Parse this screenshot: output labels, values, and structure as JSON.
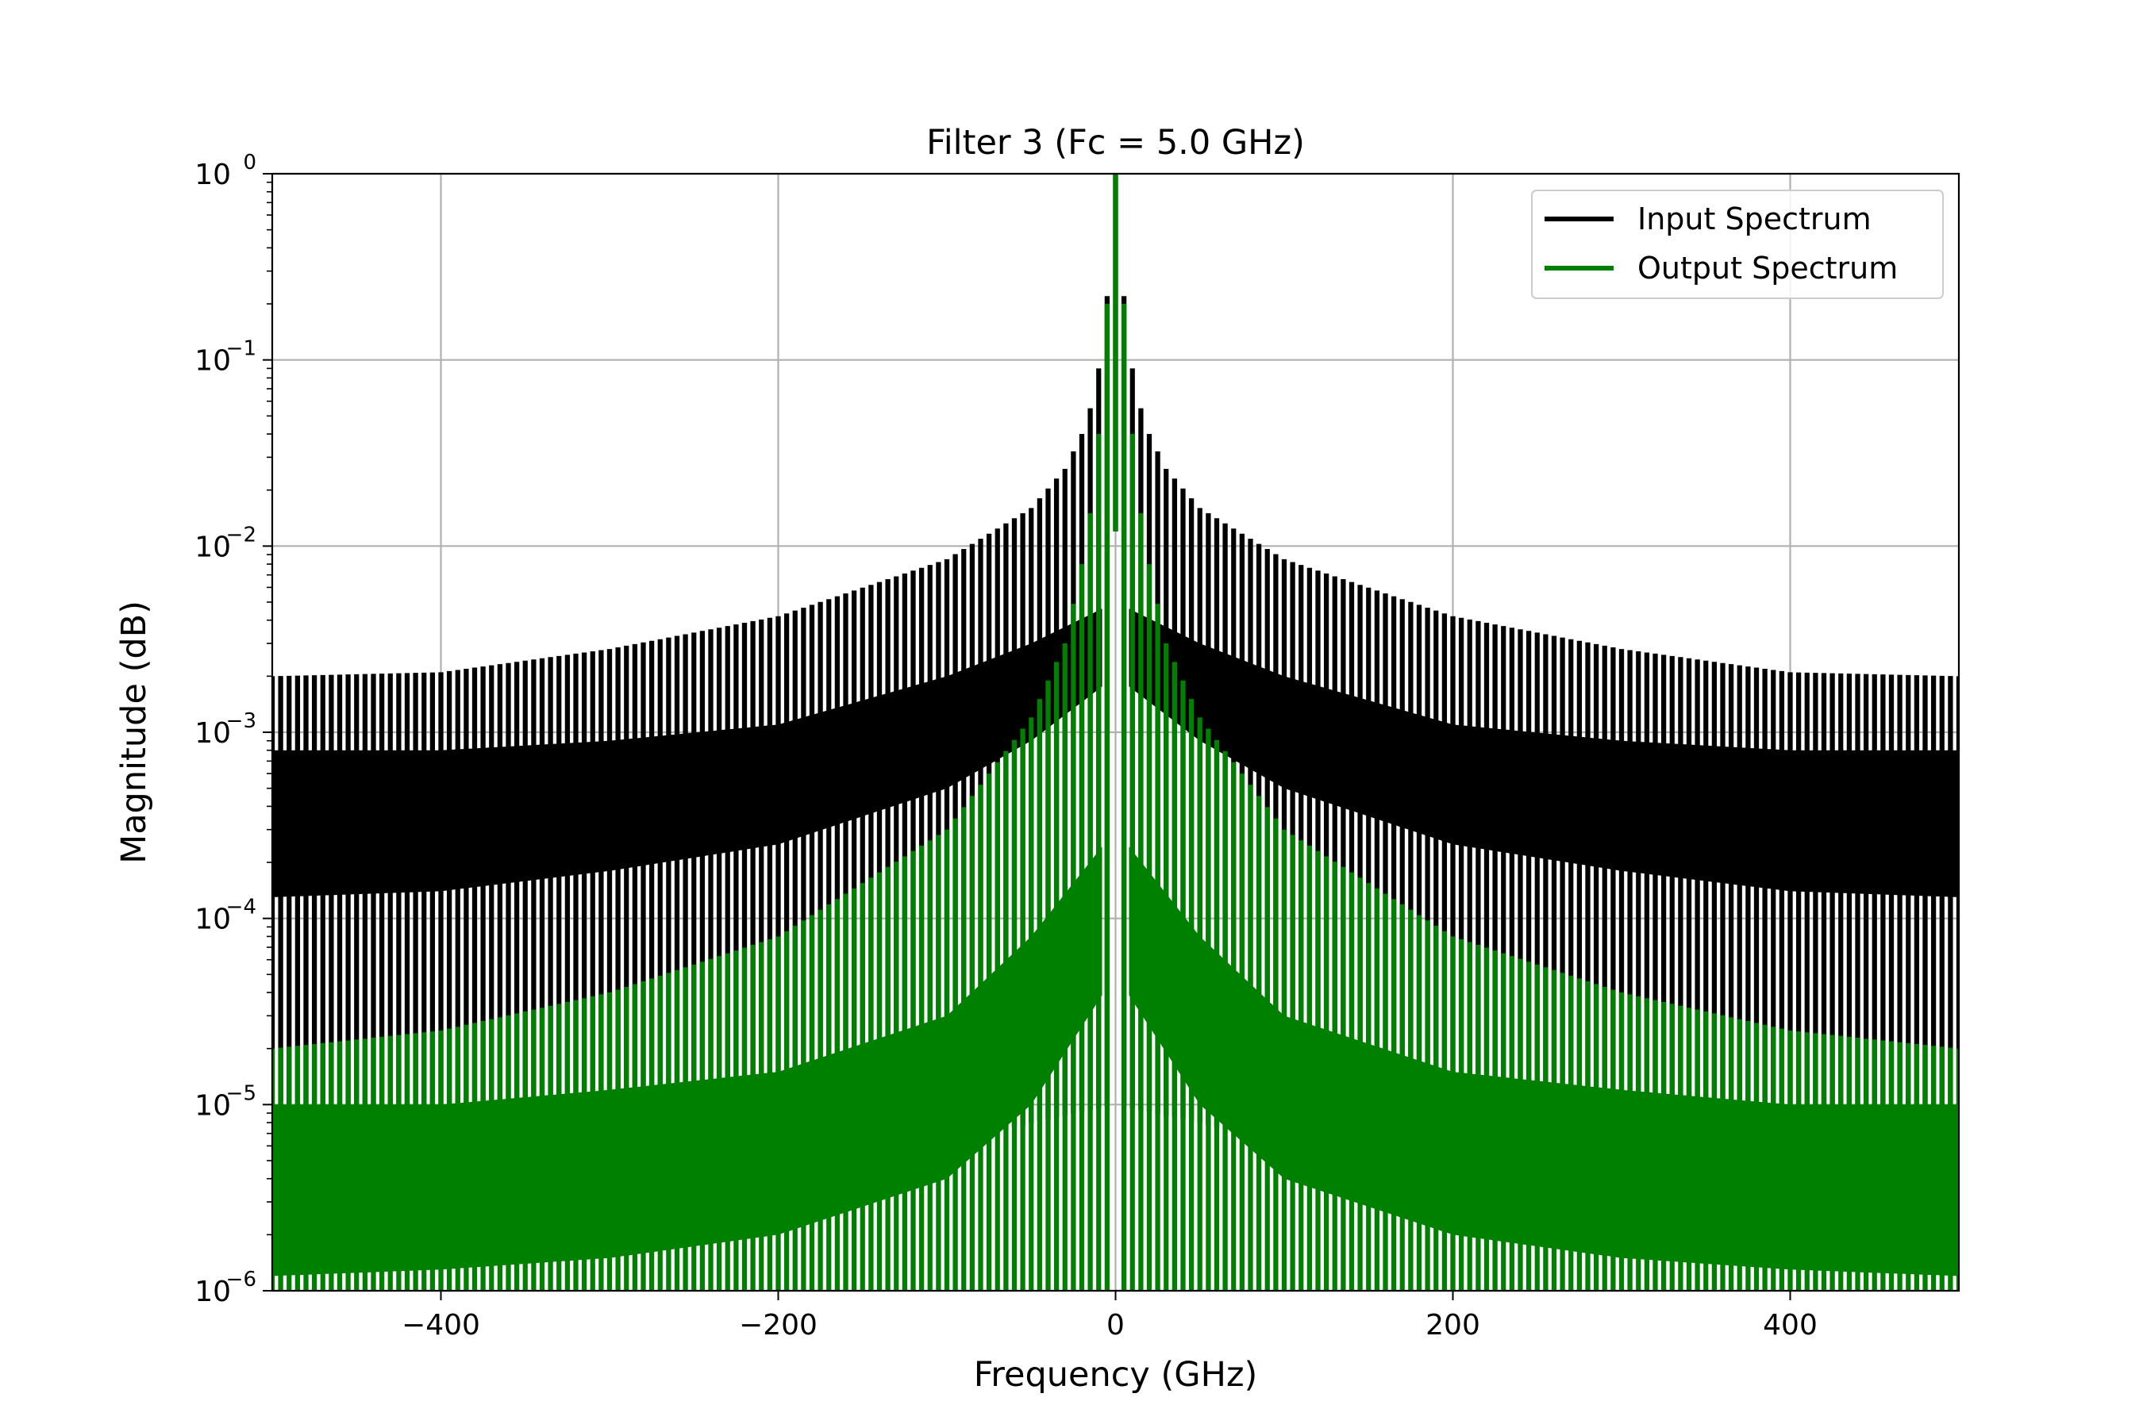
{
  "chart_data": {
    "type": "line",
    "title": "Filter 3 (Fc = 5.0 GHz)",
    "xlabel": "Frequency (GHz)",
    "ylabel": "Magnitude (dB)",
    "xlim": [
      -500,
      500
    ],
    "ylim": [
      1e-06,
      1
    ],
    "yscale": "log",
    "grid": true,
    "legend_position": "top-right",
    "x_ticks": [
      {
        "value": -400,
        "label": "−400"
      },
      {
        "value": -200,
        "label": "−200"
      },
      {
        "value": 0,
        "label": "0"
      },
      {
        "value": 200,
        "label": "200"
      },
      {
        "value": 400,
        "label": "400"
      }
    ],
    "y_ticks": [
      {
        "value": 1,
        "base": "10",
        "exp": "0"
      },
      {
        "value": 0.1,
        "base": "10",
        "exp": "−1"
      },
      {
        "value": 0.01,
        "base": "10",
        "exp": "−2"
      },
      {
        "value": 0.001,
        "base": "10",
        "exp": "−3"
      },
      {
        "value": 0.0001,
        "base": "10",
        "exp": "−4"
      },
      {
        "value": 1e-05,
        "base": "10",
        "exp": "−5"
      },
      {
        "value": 1e-06,
        "base": "10",
        "exp": "−6"
      }
    ],
    "harmonic_spacing_ghz": 5,
    "series": [
      {
        "name": "Input Spectrum",
        "color": "#000000",
        "envelope_x": [
          0,
          5,
          10,
          15,
          20,
          30,
          50,
          100,
          200,
          300,
          400,
          500
        ],
        "envelope_peak": [
          1.0,
          0.22,
          0.09,
          0.055,
          0.04,
          0.026,
          0.016,
          0.0085,
          0.0042,
          0.0028,
          0.0021,
          0.002
        ],
        "floor_x": [
          0,
          50,
          100,
          200,
          300,
          400,
          500
        ],
        "floor_min": [
          1e-05,
          8e-06,
          6e-06,
          5e-06,
          5e-06,
          5e-06,
          5e-06
        ],
        "band_low_x": [
          0,
          50,
          100,
          200,
          300,
          400,
          500
        ],
        "band_low": [
          0.002,
          0.0009,
          0.0005,
          0.00025,
          0.00018,
          0.00014,
          0.00013
        ],
        "band_high_x": [
          0,
          50,
          100,
          200,
          300,
          400,
          500
        ],
        "band_high": [
          0.005,
          0.003,
          0.002,
          0.0011,
          0.0009,
          0.0008,
          0.0008
        ]
      },
      {
        "name": "Output Spectrum",
        "color": "#008000",
        "envelope_x": [
          0,
          5,
          10,
          15,
          20,
          30,
          50,
          100,
          200,
          300,
          400,
          500
        ],
        "envelope_peak": [
          1.0,
          0.2,
          0.04,
          0.015,
          0.008,
          0.003,
          0.0012,
          0.0003,
          8e-05,
          4e-05,
          2.5e-05,
          2e-05
        ],
        "floor_x": [
          0,
          500
        ],
        "floor_min": [
          1e-06,
          1e-06
        ],
        "band_low_x": [
          0,
          50,
          100,
          200,
          300,
          400,
          500
        ],
        "band_low": [
          5e-05,
          1e-05,
          4e-06,
          2e-06,
          1.5e-06,
          1.3e-06,
          1.2e-06
        ],
        "band_high_x": [
          0,
          50,
          100,
          200,
          300,
          400,
          500
        ],
        "band_high": [
          0.0003,
          8e-05,
          3e-05,
          1.5e-05,
          1.2e-05,
          1e-05,
          1e-05
        ]
      }
    ]
  }
}
